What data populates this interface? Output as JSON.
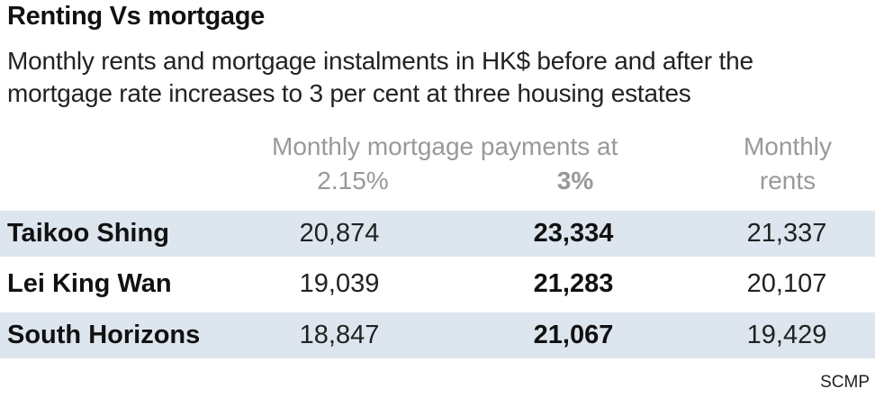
{
  "chart_data": {
    "type": "table",
    "title": "Renting Vs mortgage",
    "subtitle": "Monthly rents and mortgage instalments in HK$ before and after the mortgage rate increases to 3 per cent at three housing estates",
    "header": {
      "group": "Monthly mortgage payments at",
      "rate_1": "2.15%",
      "rate_2": "3%",
      "rents": "Monthly rents"
    },
    "rows": [
      {
        "name": "Taikoo Shing",
        "mortgage_215": "20,874",
        "mortgage_3": "23,334",
        "rent": "21,337",
        "shaded": true
      },
      {
        "name": "Lei King Wan",
        "mortgage_215": "19,039",
        "mortgage_3": "21,283",
        "rent": "20,107",
        "shaded": false
      },
      {
        "name": "South Horizons",
        "mortgage_215": "18,847",
        "mortgage_3": "21,067",
        "rent": "19,429",
        "shaded": true
      }
    ],
    "source": "SCMP",
    "colors": {
      "row_shade": "#dde6ee",
      "header_text": "#999999"
    }
  }
}
